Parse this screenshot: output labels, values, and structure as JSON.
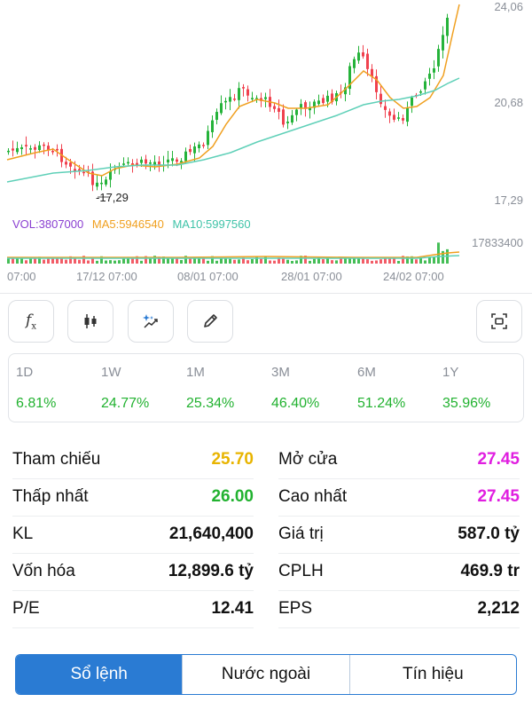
{
  "chart": {
    "y_labels": [
      "24,06",
      "20,68",
      "17,29"
    ],
    "min_label": "17,29",
    "vol_legend": {
      "vol": "VOL:3807000",
      "ma5": "MA5:5946540",
      "ma10": "MA10:5997560"
    },
    "vol_max": "17833400",
    "x_labels": [
      "07:00",
      "17/12 07:00",
      "08/01 07:00",
      "28/01 07:00",
      "24/02 07:00"
    ],
    "colors": {
      "up": "#25b33a",
      "down": "#f0414e",
      "ma5": "#f0a020",
      "ma10": "#5fd0b8"
    }
  },
  "toolbar": {
    "buttons": [
      "function-icon",
      "candlestick-icon",
      "magic-draw-icon",
      "pencil-icon",
      "fullscreen-icon"
    ]
  },
  "performance": [
    {
      "period": "1D",
      "value": "6.81%"
    },
    {
      "period": "1W",
      "value": "24.77%"
    },
    {
      "period": "1M",
      "value": "25.34%"
    },
    {
      "period": "3M",
      "value": "46.40%"
    },
    {
      "period": "6M",
      "value": "51.24%"
    },
    {
      "period": "1Y",
      "value": "35.96%"
    }
  ],
  "stats": [
    {
      "left_label": "Tham chiếu",
      "left_value": "25.70",
      "left_color": "#e8b400",
      "right_label": "Mở cửa",
      "right_value": "27.45",
      "right_color": "#e01ee0"
    },
    {
      "left_label": "Thấp nhất",
      "left_value": "26.00",
      "left_color": "#22b230",
      "right_label": "Cao nhất",
      "right_value": "27.45",
      "right_color": "#e01ee0"
    },
    {
      "left_label": "KL",
      "left_value": "21,640,400",
      "left_color": "#111111",
      "right_label": "Giá trị",
      "right_value": "587.0 tỷ",
      "right_color": "#111111"
    },
    {
      "left_label": "Vốn hóa",
      "left_value": "12,899.6 tỷ",
      "left_color": "#111111",
      "right_label": "CPLH",
      "right_value": "469.9 tr",
      "right_color": "#111111"
    },
    {
      "left_label": "P/E",
      "left_value": "12.41",
      "left_color": "#111111",
      "right_label": "EPS",
      "right_value": "2,212",
      "right_color": "#111111"
    }
  ],
  "tabs": [
    {
      "label": "Sổ lệnh",
      "active": true
    },
    {
      "label": "Nước ngoài",
      "active": false
    },
    {
      "label": "Tín hiệu",
      "active": false
    }
  ]
}
